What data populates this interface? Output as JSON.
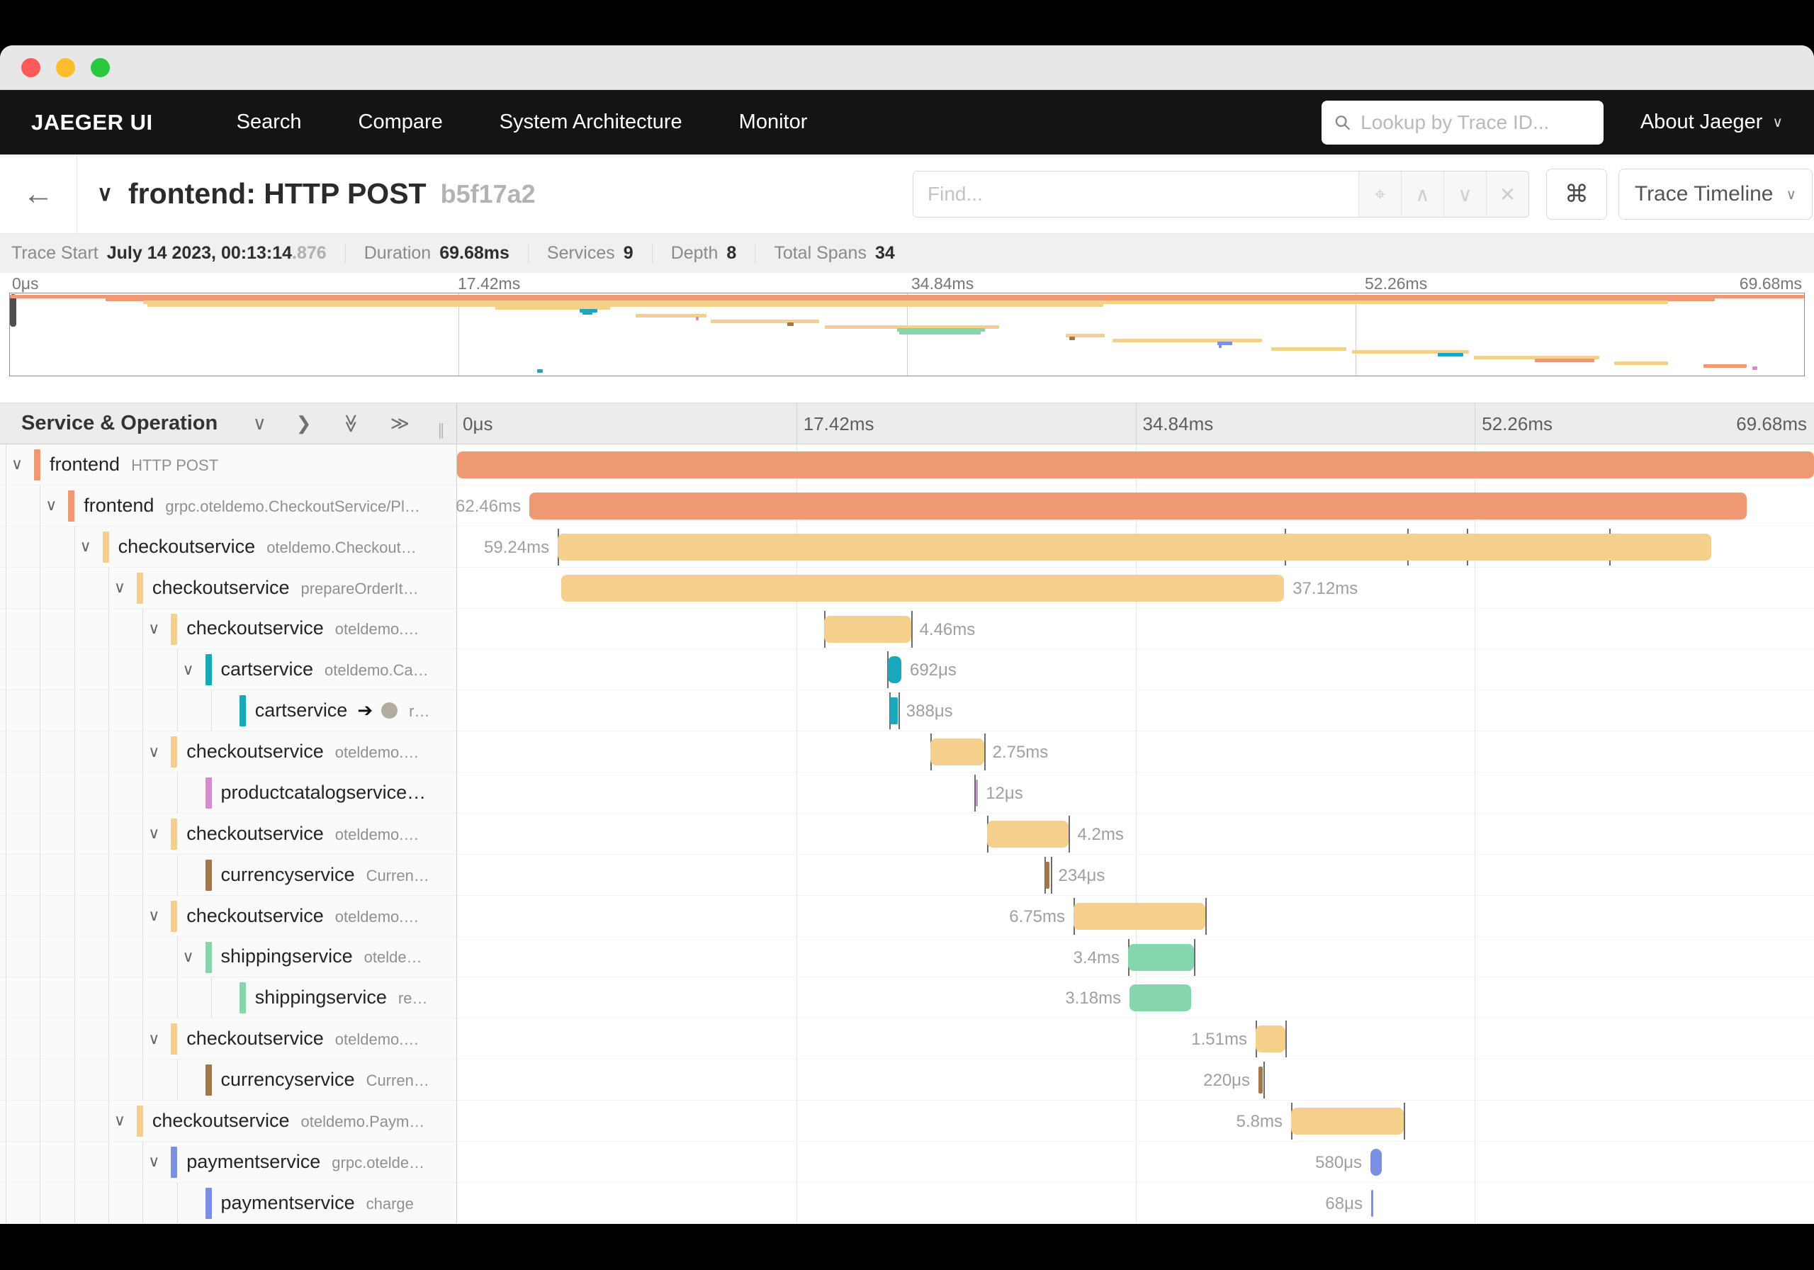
{
  "window": {
    "traffic_lights": [
      "#fc5b57",
      "#fdbc2e",
      "#28c83f"
    ]
  },
  "nav": {
    "brand": "JAEGER UI",
    "items": [
      "Search",
      "Compare",
      "System Architecture",
      "Monitor"
    ],
    "search_placeholder": "Lookup by Trace ID...",
    "about_label": "About Jaeger"
  },
  "trace_header": {
    "title": "frontend: HTTP POST",
    "trace_id": "b5f17a2",
    "find_placeholder": "Find...",
    "find_buttons": [
      "⌖",
      "∧",
      "∨",
      "✕"
    ],
    "cmd_label": "⌘",
    "view_selector": "Trace Timeline"
  },
  "stats": [
    {
      "label": "Trace Start",
      "value": "July 14 2023, 00:13:14",
      "suffix": ".876"
    },
    {
      "label": "Duration",
      "value": "69.68ms"
    },
    {
      "label": "Services",
      "value": "9"
    },
    {
      "label": "Depth",
      "value": "8"
    },
    {
      "label": "Total Spans",
      "value": "34"
    }
  ],
  "left_header": {
    "title": "Service & Operation"
  },
  "colors": {
    "salmon": "#EE9874",
    "tan": "#F4D08C",
    "teal": "#19A8BC",
    "pink": "#D88BCC",
    "brown": "#A5764A",
    "green": "#85D5AD",
    "blue": "#7B90E2"
  },
  "chart_data": {
    "type": "gantt",
    "title": "Jaeger trace timeline: frontend: HTTP POST (b5f17a2)",
    "time_axis": {
      "min": "0μs",
      "max": "69.68ms",
      "ticks": [
        "0μs",
        "17.42ms",
        "34.84ms",
        "52.26ms",
        "69.68ms"
      ]
    },
    "spans": [
      {
        "service": "frontend",
        "operation": "HTTP POST",
        "level": 0,
        "color": "salmon",
        "start_pct": 0,
        "width_pct": 100,
        "duration": "",
        "label_side": null,
        "chevron": true,
        "ticks": []
      },
      {
        "service": "frontend",
        "operation": "grpc.oteldemo.CheckoutService/Pl…",
        "level": 1,
        "color": "salmon",
        "start_pct": 5.33,
        "width_pct": 89.7,
        "duration": "62.46ms",
        "label_side": "left",
        "chevron": true,
        "ticks": []
      },
      {
        "service": "checkoutservice",
        "operation": "oteldemo.Checkout…",
        "level": 2,
        "color": "tan",
        "start_pct": 7.42,
        "width_pct": 85.0,
        "duration": "59.24ms",
        "label_side": "left",
        "chevron": true,
        "ticks": [
          7.42,
          61.0,
          70.0,
          74.4,
          84.9
        ]
      },
      {
        "service": "checkoutservice",
        "operation": "prepareOrderIt…",
        "level": 3,
        "color": "tan",
        "start_pct": 7.68,
        "width_pct": 53.27,
        "duration": "37.12ms",
        "label_side": "right",
        "chevron": true,
        "ticks": []
      },
      {
        "service": "checkoutservice",
        "operation": "oteldemo.…",
        "level": 4,
        "color": "tan",
        "start_pct": 27.05,
        "width_pct": 6.4,
        "duration": "4.46ms",
        "label_side": "right",
        "chevron": true,
        "ticks": [
          27.05,
          33.45
        ]
      },
      {
        "service": "cartservice",
        "operation": "oteldemo.Ca…",
        "level": 5,
        "color": "teal",
        "start_pct": 31.75,
        "width_pct": 0.99,
        "duration": "692μs",
        "label_side": "right",
        "chevron": true,
        "ticks": [
          31.68
        ]
      },
      {
        "service": "cartservice",
        "operation": "r…",
        "level": 6,
        "color": "teal",
        "start_pct": 31.91,
        "width_pct": 0.56,
        "duration": "388μs",
        "label_side": "right",
        "chevron": false,
        "ticks": [
          31.83,
          32.55
        ],
        "ref": true
      },
      {
        "service": "checkoutservice",
        "operation": "oteldemo.…",
        "level": 4,
        "color": "tan",
        "start_pct": 34.88,
        "width_pct": 3.95,
        "duration": "2.75ms",
        "label_side": "right",
        "chevron": true,
        "ticks": [
          34.88,
          38.83
        ]
      },
      {
        "service": "productcatalogservice…",
        "operation": "",
        "level": 5,
        "color": "pink",
        "start_pct": 38.22,
        "width_pct": 0.12,
        "duration": "12μs",
        "label_side": "right",
        "chevron": false,
        "ticks": [
          38.1
        ]
      },
      {
        "service": "checkoutservice",
        "operation": "oteldemo.…",
        "level": 4,
        "color": "tan",
        "start_pct": 39.06,
        "width_pct": 6.03,
        "duration": "4.2ms",
        "label_side": "right",
        "chevron": true,
        "ticks": [
          39.06,
          45.09
        ]
      },
      {
        "service": "currencyservice",
        "operation": "Curren…",
        "level": 5,
        "color": "brown",
        "start_pct": 43.34,
        "width_pct": 0.34,
        "duration": "234μs",
        "label_side": "right",
        "chevron": false,
        "ticks": [
          43.28,
          43.75
        ]
      },
      {
        "service": "checkoutservice",
        "operation": "oteldemo.…",
        "level": 4,
        "color": "tan",
        "start_pct": 45.43,
        "width_pct": 9.69,
        "duration": "6.75ms",
        "label_side": "left",
        "chevron": true,
        "ticks": [
          45.43,
          55.12
        ]
      },
      {
        "service": "shippingservice",
        "operation": "otelde…",
        "level": 5,
        "color": "green",
        "start_pct": 49.45,
        "width_pct": 4.88,
        "duration": "3.4ms",
        "label_side": "left",
        "chevron": true,
        "ticks": [
          49.45,
          54.33
        ]
      },
      {
        "service": "shippingservice",
        "operation": "re…",
        "level": 6,
        "color": "green",
        "start_pct": 49.56,
        "width_pct": 4.56,
        "duration": "3.18ms",
        "label_side": "left",
        "chevron": false,
        "ticks": []
      },
      {
        "service": "checkoutservice",
        "operation": "oteldemo.…",
        "level": 4,
        "color": "tan",
        "start_pct": 58.85,
        "width_pct": 2.17,
        "duration": "1.51ms",
        "label_side": "left",
        "chevron": true,
        "ticks": [
          58.85,
          61.02
        ]
      },
      {
        "service": "currencyservice",
        "operation": "Curren…",
        "level": 5,
        "color": "brown",
        "start_pct": 59.06,
        "width_pct": 0.32,
        "duration": "220μs",
        "label_side": "left",
        "chevron": false,
        "ticks": [
          59.45
        ]
      },
      {
        "service": "checkoutservice",
        "operation": "oteldemo.Paym…",
        "level": 3,
        "color": "tan",
        "start_pct": 61.46,
        "width_pct": 8.32,
        "duration": "5.8ms",
        "label_side": "left",
        "chevron": true,
        "ticks": [
          61.46,
          69.78
        ]
      },
      {
        "service": "paymentservice",
        "operation": "grpc.otelde…",
        "level": 4,
        "color": "blue",
        "start_pct": 67.31,
        "width_pct": 0.83,
        "duration": "580μs",
        "label_side": "left",
        "chevron": true,
        "ticks": []
      },
      {
        "service": "paymentservice",
        "operation": "charge",
        "level": 5,
        "color": "blue",
        "start_pct": 67.36,
        "width_pct": 0.1,
        "duration": "68μs",
        "label_side": "left",
        "chevron": false,
        "ticks": []
      }
    ],
    "minimap_extra_spans": [
      {
        "start_pct": 70.3,
        "width_pct": 4.2,
        "color": "tan"
      },
      {
        "start_pct": 74.8,
        "width_pct": 6.5,
        "color": "tan"
      },
      {
        "start_pct": 79.6,
        "width_pct": 1.4,
        "color": "teal"
      },
      {
        "start_pct": 81.6,
        "width_pct": 7.0,
        "color": "tan"
      },
      {
        "start_pct": 85.0,
        "width_pct": 3.3,
        "color": "salmon"
      },
      {
        "start_pct": 89.4,
        "width_pct": 3.0,
        "color": "tan"
      },
      {
        "start_pct": 94.4,
        "width_pct": 2.4,
        "color": "salmon"
      },
      {
        "start_pct": 97.1,
        "width_pct": 0.3,
        "color": "pink"
      },
      {
        "start_pct": 29.4,
        "width_pct": 0.3,
        "color": "teal"
      }
    ]
  }
}
